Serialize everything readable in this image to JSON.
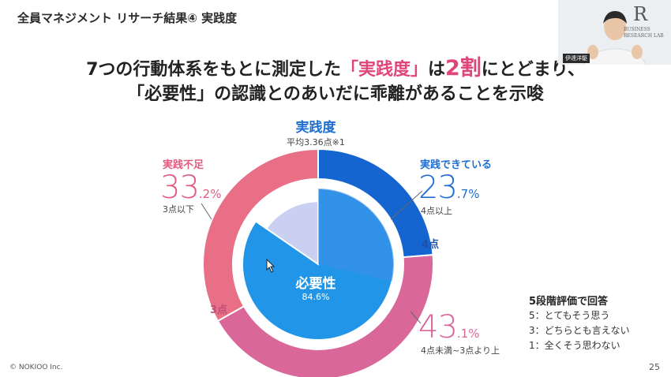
{
  "slide": {
    "title": "全員マネジメント リサーチ結果④ 実践度",
    "headline1_pre": "7つの行動体系をもとに測定した",
    "headline1_hl": "「実践度」",
    "headline1_mid": "は",
    "headline1_big": "2割",
    "headline1_post": "にとどまり、",
    "headline2": "「必要性」の認識とのあいだに乖離があることを示唆",
    "page_number": "25",
    "copyright": "© NOKIOO Inc."
  },
  "chart_data": {
    "type": "pie",
    "title": "実践度",
    "subtitle": "平均3.36点※1",
    "outer_ring": [
      {
        "name": "実践できている",
        "value": 23.7,
        "value_int": "23",
        "value_dec": ".7%",
        "note": "4点以上",
        "color": "#1565d0"
      },
      {
        "name": "4点未満~3点より上",
        "value": 43.1,
        "value_int": "43",
        "value_dec": ".1%",
        "note": "4点未満~3点より上",
        "color": "#d9679a"
      },
      {
        "name": "実践不足",
        "value": 33.2,
        "value_int": "33",
        "value_dec": ".2%",
        "note": "3点以下",
        "color": "#e86f86"
      }
    ],
    "inner_pie": {
      "label": "必要性",
      "value_text": "84.6%",
      "value": 84.6,
      "color": "#2196e8",
      "remainder_color": "#c9d0f2"
    },
    "boundary_labels": {
      "four": "4点",
      "three": "3点"
    }
  },
  "legend": {
    "title": "5段階評価で回答",
    "lines": [
      "5：とてもそう思う",
      "3：どちらとも言えない",
      "1：全くそう思わない"
    ]
  },
  "webcam": {
    "name": "伊達洋駆",
    "logo_mark": "R",
    "logo_text1": "BUSINESS",
    "logo_text2": "RESEARCH LAB"
  },
  "colors": {
    "accent_pink": "#e0457a",
    "accent_blue": "#1f6fd1"
  }
}
